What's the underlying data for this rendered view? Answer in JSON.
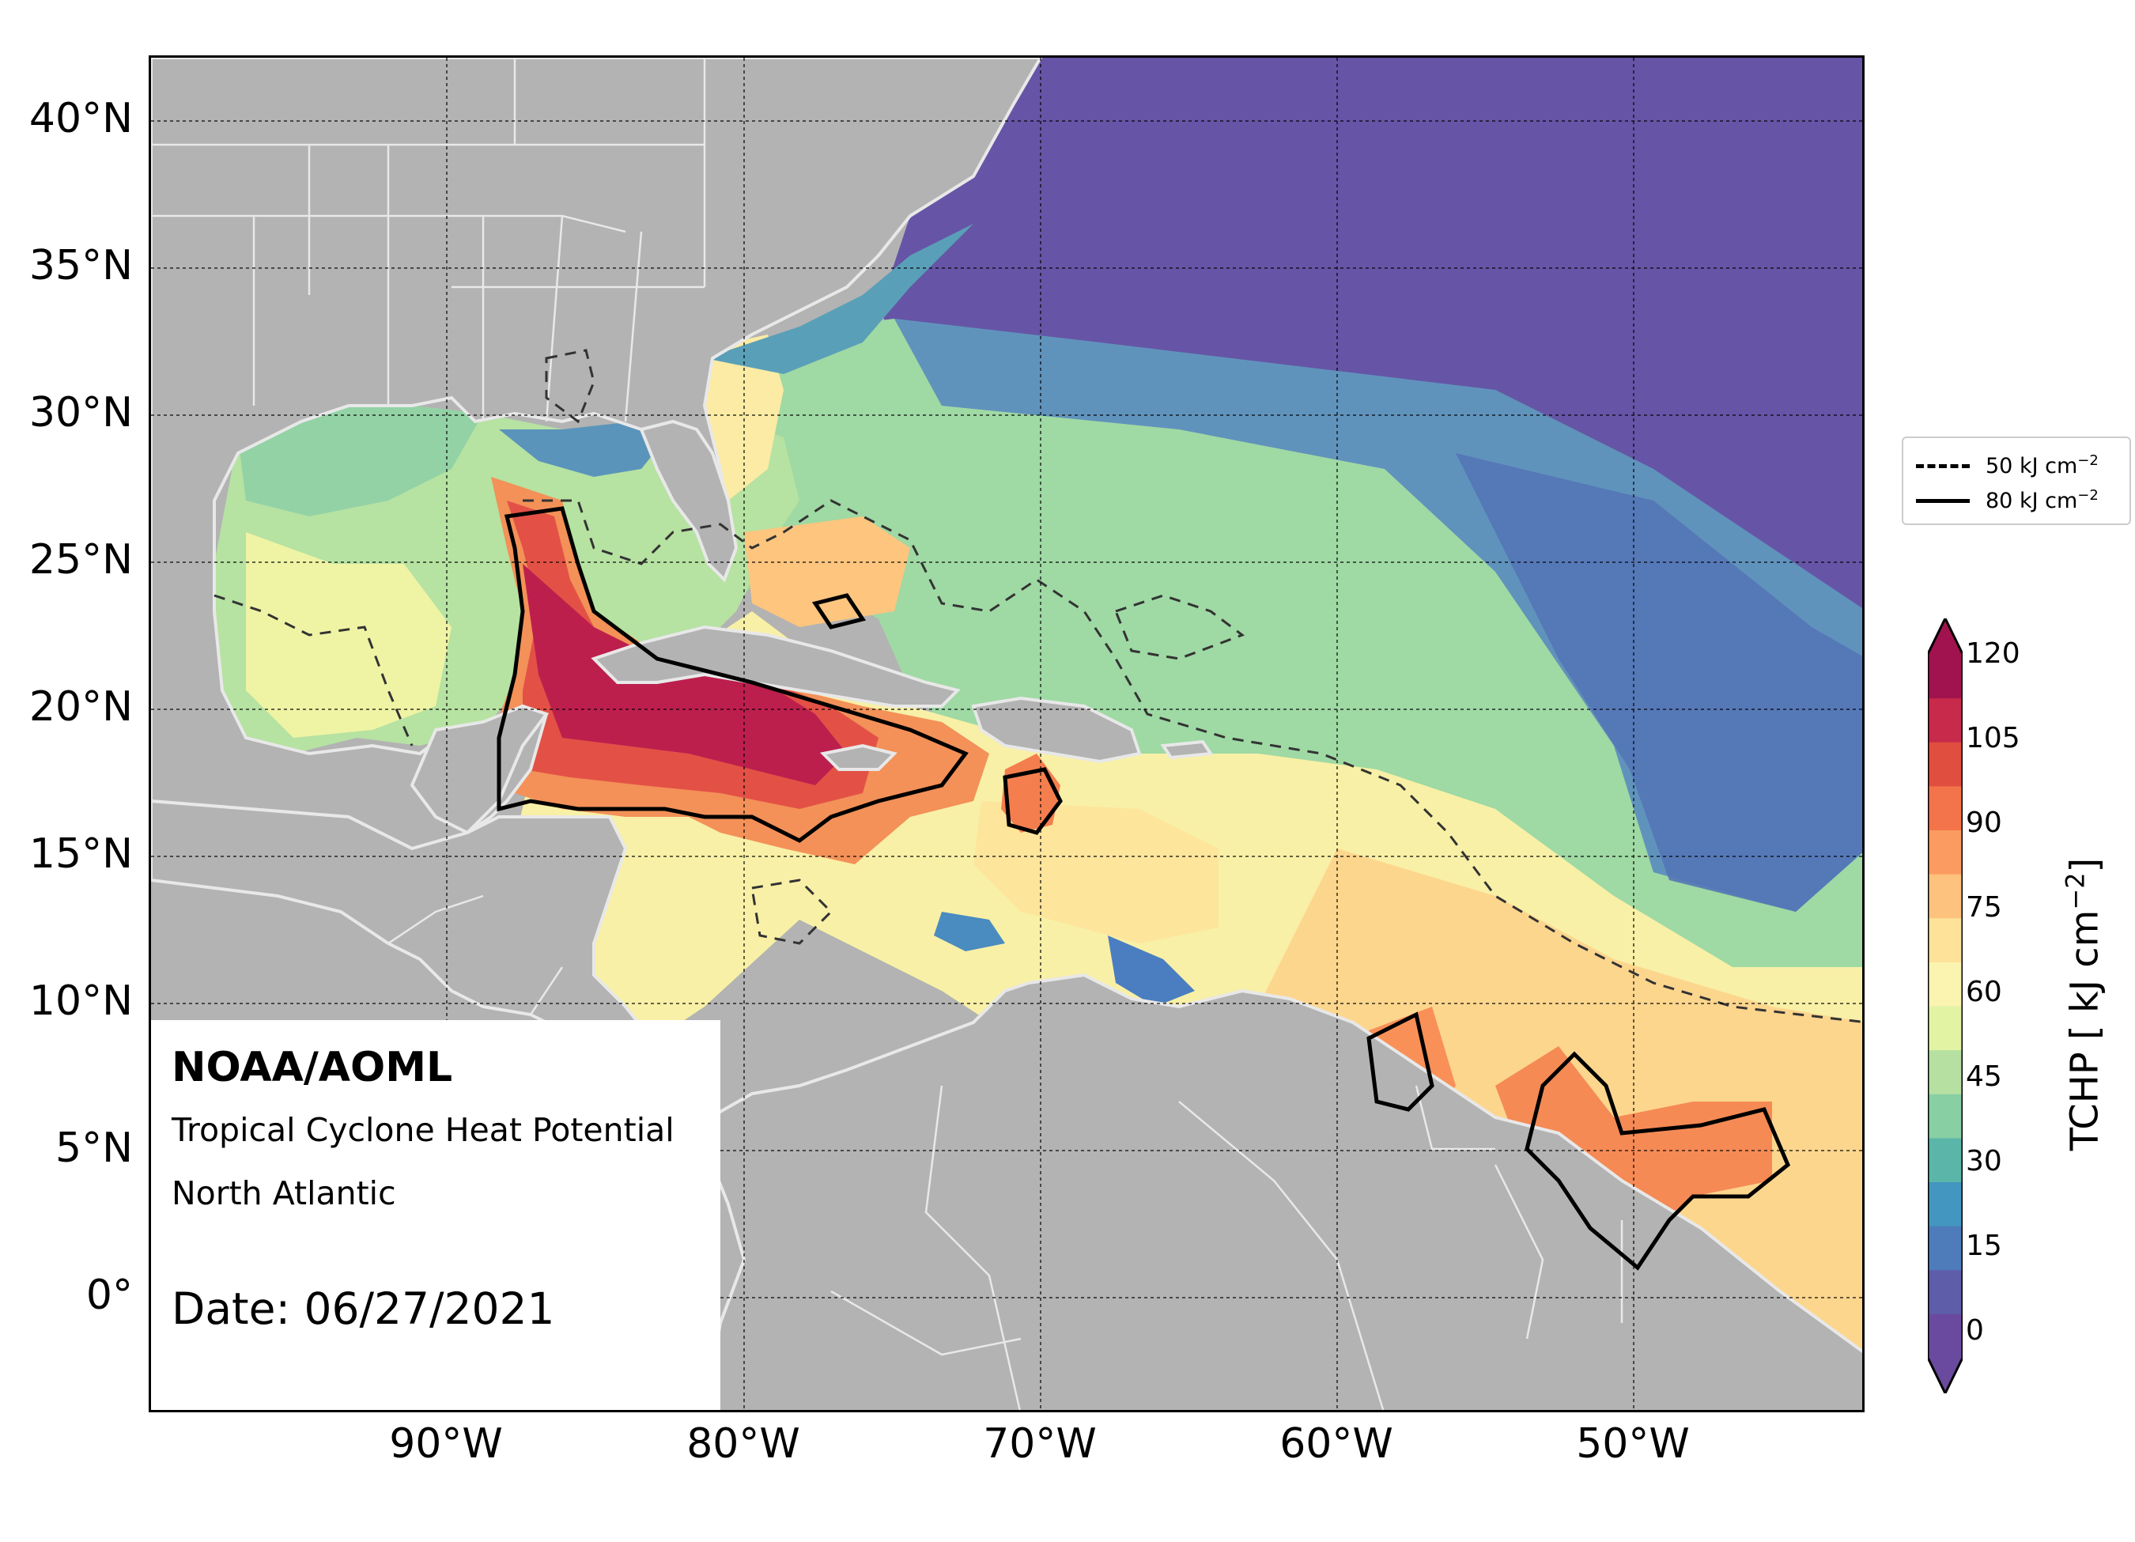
{
  "map": {
    "lat_ticks": [
      "40°N",
      "35°N",
      "30°N",
      "25°N",
      "20°N",
      "15°N",
      "10°N",
      "5°N",
      "0°"
    ],
    "lon_ticks": [
      "90°W",
      "80°W",
      "70°W",
      "60°W",
      "50°W"
    ],
    "colors": {
      "land": "#b3b3b3",
      "borders": "#e8e8e8",
      "ocean_deep": "#6655a6",
      "ocean_cool": "#4b7fbf",
      "ocean_mid": "#5fb3a8",
      "ocean_warm": "#a8dca3",
      "ocean_yellow": "#f4f6a8",
      "ocean_orange": "#fdc07a",
      "ocean_red": "#f06a44",
      "ocean_hot": "#b3134a"
    }
  },
  "info": {
    "org": "NOAA/AOML",
    "product": "Tropical Cyclone Heat Potential",
    "region": "North Atlantic",
    "date": "Date: 06/27/2021"
  },
  "legend": {
    "dashed_label": "50 kJ cm",
    "solid_label": "80 kJ cm",
    "exponent": "−2"
  },
  "colorbar": {
    "title": "TCHP [ kJ cm",
    "title_exponent": "−2",
    "title_close": "]",
    "ticks": [
      "120",
      "105",
      "90",
      "75",
      "60",
      "45",
      "30",
      "15",
      "0"
    ],
    "colormap": [
      "#6a4a9e",
      "#5e5da9",
      "#4e7cbb",
      "#4296bf",
      "#5bb6a9",
      "#88cfa3",
      "#b5e0a2",
      "#e2f3a4",
      "#fbf4b0",
      "#fee29a",
      "#fdc27d",
      "#fc9b61",
      "#f3744a",
      "#e04e3f",
      "#c72a4b",
      "#a0134e"
    ]
  }
}
